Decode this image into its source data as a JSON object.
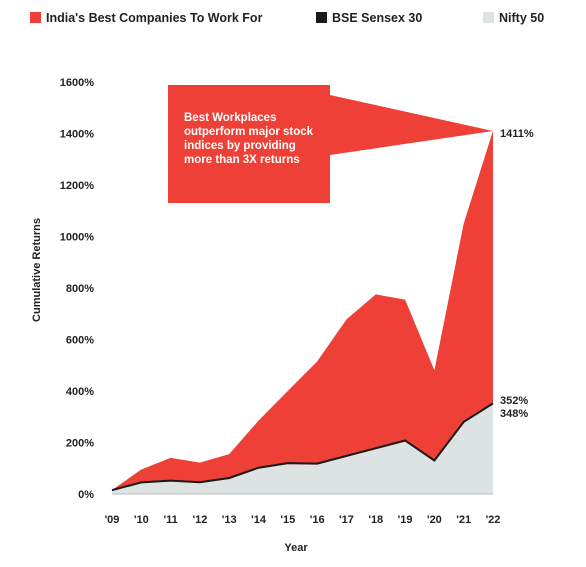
{
  "chart_data": {
    "type": "area",
    "title": "",
    "xlabel": "Year",
    "ylabel": "Cumulative Returns",
    "categories": [
      "'09",
      "'10",
      "'11",
      "'12",
      "'13",
      "'14",
      "'15",
      "'16",
      "'17",
      "'18",
      "'19",
      "'20",
      "'21",
      "'22"
    ],
    "ylim": [
      0,
      1600
    ],
    "yticks": [
      "0%",
      "200%",
      "400%",
      "600%",
      "800%",
      "1000%",
      "1200%",
      "1400%",
      "1600%"
    ],
    "series": [
      {
        "name": "India's Best Companies To Work For",
        "color": "#ee4036",
        "values": [
          15,
          95,
          140,
          122,
          155,
          285,
          400,
          515,
          678,
          775,
          755,
          480,
          1050,
          1411
        ]
      },
      {
        "name": "BSE Sensex 30",
        "color": "#1a1a1a",
        "values": [
          15,
          45,
          52,
          46,
          62,
          102,
          120,
          118,
          148,
          178,
          208,
          130,
          280,
          352
        ]
      },
      {
        "name": "Nifty 50",
        "color": "#dde3e3",
        "values": [
          12,
          42,
          50,
          43,
          58,
          98,
          116,
          114,
          144,
          174,
          203,
          126,
          276,
          348
        ]
      }
    ],
    "end_labels": [
      "1411%",
      "352%",
      "348%"
    ],
    "annotation": {
      "lines": [
        "Best Workplaces",
        "outperform major stock",
        "indices by providing",
        "more than 3X returns"
      ]
    },
    "legend_placement": "top",
    "grid": false
  }
}
